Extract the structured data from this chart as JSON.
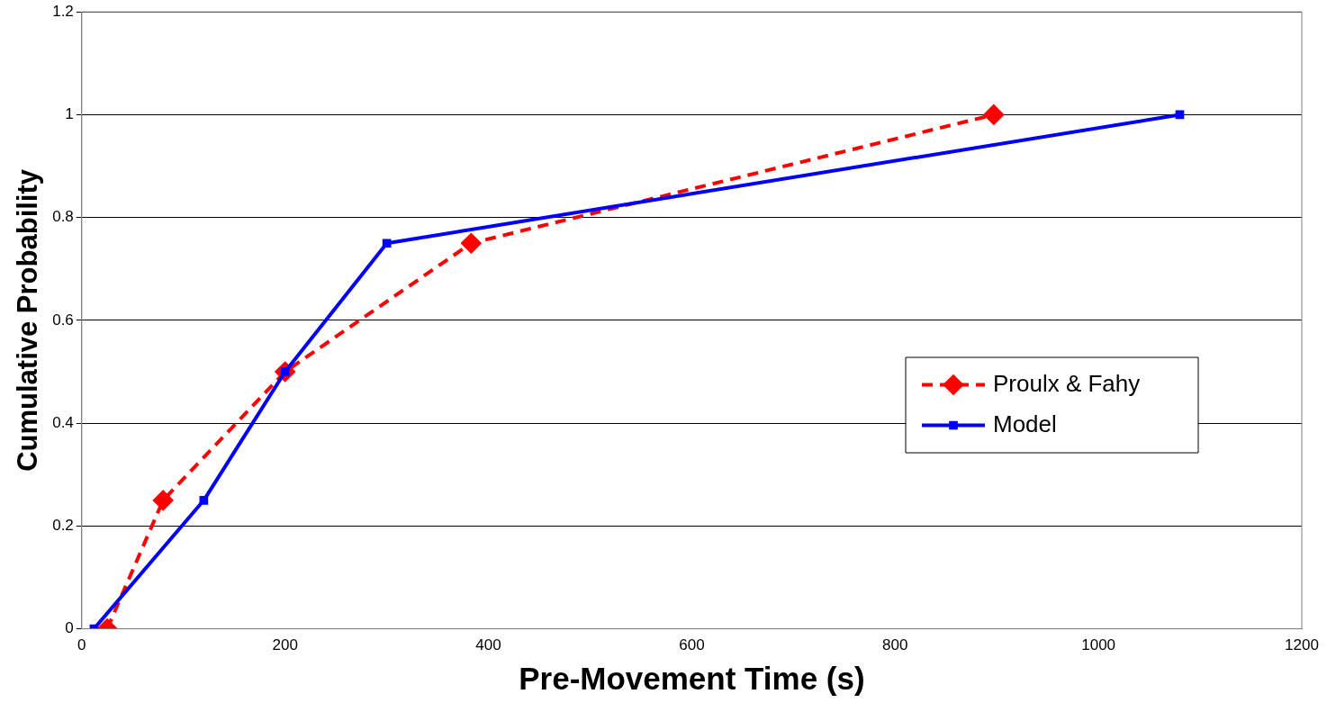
{
  "chart_data": {
    "type": "line",
    "xlabel": "Pre-Movement Time (s)",
    "ylabel": "Cumulative Probability",
    "xlim": [
      0,
      1200
    ],
    "xticks": [
      0,
      200,
      400,
      600,
      800,
      1000,
      1200
    ],
    "ylim": [
      0,
      1.2
    ],
    "yticks": [
      0,
      0.2,
      0.4,
      0.6,
      0.8,
      1,
      1.2
    ],
    "grid": "y",
    "legend": "right",
    "series": [
      {
        "name": "Proulx & Fahy",
        "color": "#ff0000",
        "x": [
          25,
          80,
          200,
          383,
          897
        ],
        "values": [
          0,
          0.25,
          0.5,
          0.75,
          1
        ],
        "marker": "diamond",
        "line_style": "dashed"
      },
      {
        "name": "Model",
        "color": "#0000ff",
        "x": [
          12,
          120,
          200,
          300,
          1080
        ],
        "values": [
          0,
          0.25,
          0.5,
          0.75,
          1
        ],
        "marker": "square",
        "line_style": "solid"
      }
    ]
  }
}
